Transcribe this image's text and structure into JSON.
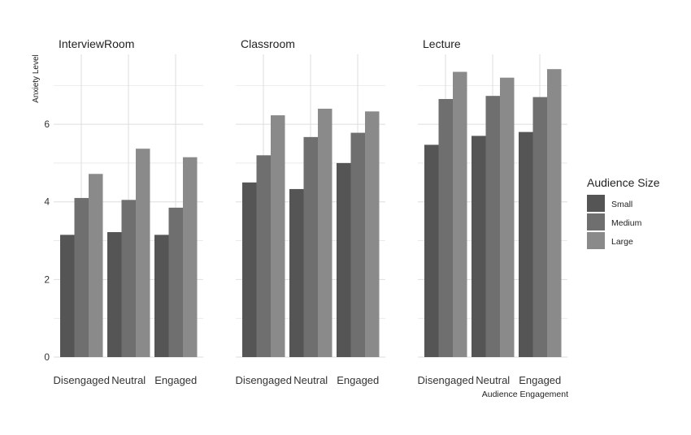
{
  "chart_data": {
    "type": "bar",
    "ylabel": "Anxiety Level",
    "xlabel": "Audience Engagement",
    "ylim": [
      0,
      7.8
    ],
    "yticks": [
      0,
      2,
      4,
      6
    ],
    "grid": true,
    "legend": {
      "title": "Audience Size",
      "position": "right",
      "entries": [
        {
          "name": "Small",
          "color": "#555555"
        },
        {
          "name": "Medium",
          "color": "#6f6f6f"
        },
        {
          "name": "Large",
          "color": "#8a8a8a"
        }
      ]
    },
    "categories": [
      "Disengaged",
      "Neutral",
      "Engaged"
    ],
    "panels": [
      {
        "title": "InterviewRoom",
        "series": [
          {
            "name": "Small",
            "values": [
              3.15,
              3.22,
              3.15
            ]
          },
          {
            "name": "Medium",
            "values": [
              4.1,
              4.05,
              3.85
            ]
          },
          {
            "name": "Large",
            "values": [
              4.72,
              5.37,
              5.15
            ]
          }
        ]
      },
      {
        "title": "Classroom",
        "series": [
          {
            "name": "Small",
            "values": [
              4.5,
              4.33,
              5.0
            ]
          },
          {
            "name": "Medium",
            "values": [
              5.2,
              5.67,
              5.78
            ]
          },
          {
            "name": "Large",
            "values": [
              6.23,
              6.4,
              6.33
            ]
          }
        ]
      },
      {
        "title": "Lecture",
        "series": [
          {
            "name": "Small",
            "values": [
              5.47,
              5.7,
              5.8
            ]
          },
          {
            "name": "Medium",
            "values": [
              6.65,
              6.73,
              6.7
            ]
          },
          {
            "name": "Large",
            "values": [
              7.35,
              7.2,
              7.42
            ]
          }
        ]
      }
    ]
  }
}
